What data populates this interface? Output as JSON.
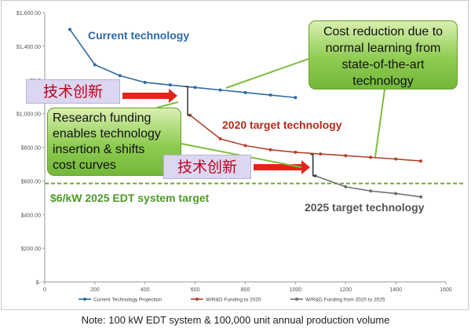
{
  "chart_data": {
    "type": "line",
    "ylim": [
      0,
      1600
    ],
    "xlim": [
      0,
      1600
    ],
    "y_ticks": [
      "$1,600.00",
      "$1,400.00",
      "$1,2",
      "$1,000.00",
      "$800.00",
      "$600.00",
      "$400.00",
      "$200.00",
      "$-"
    ],
    "y_tick_values": [
      1600,
      1400,
      1200,
      1000,
      800,
      600,
      400,
      200,
      0
    ],
    "x_ticks": [
      "0",
      "200",
      "400",
      "600",
      "800",
      "1000",
      "1200",
      "1400",
      "1600"
    ],
    "x_tick_values": [
      0,
      200,
      400,
      600,
      800,
      1000,
      1200,
      1400,
      1600
    ],
    "series": [
      {
        "name": "Current Technology Projection",
        "label": "Current technology",
        "color": "#2d6aa3",
        "x": [
          100,
          200,
          300,
          400,
          500,
          600,
          700,
          800,
          900,
          1000
        ],
        "y": [
          1500,
          1290,
          1225,
          1185,
          1170,
          1155,
          1140,
          1125,
          1110,
          1095
        ]
      },
      {
        "name": "W/R&D Funding to 2020",
        "label": "2020 target technology",
        "color": "#b0442a",
        "x": [
          580,
          700,
          800,
          900,
          1000,
          1100,
          1200,
          1300,
          1400,
          1500
        ],
        "y": [
          990,
          850,
          810,
          785,
          770,
          760,
          750,
          740,
          730,
          718
        ]
      },
      {
        "name": "W/R&D Funding from 2020 to 2025",
        "label": "2025 target technology",
        "color": "#6e6e6e",
        "x": [
          1080,
          1200,
          1300,
          1400,
          1500
        ],
        "y": [
          630,
          565,
          540,
          525,
          505
        ]
      }
    ],
    "target_line": {
      "value": 585,
      "label": "$6/kW 2025 EDT system target",
      "color": "#6aaa3a"
    },
    "annotations": {
      "cost_callout": [
        "Cost reduction due to",
        "normal learning from",
        "state-of-the-art",
        "technology"
      ],
      "research_callout": [
        "Research funding",
        "enables technology",
        "insertion & shifts",
        "cost curves"
      ],
      "innovation_label_1": "技术创新",
      "innovation_label_2": "技术创新"
    },
    "legend_position": "bottom",
    "grid": false
  },
  "footnote": "Note: 100 kW EDT system & 100,000 unit annual production volume"
}
